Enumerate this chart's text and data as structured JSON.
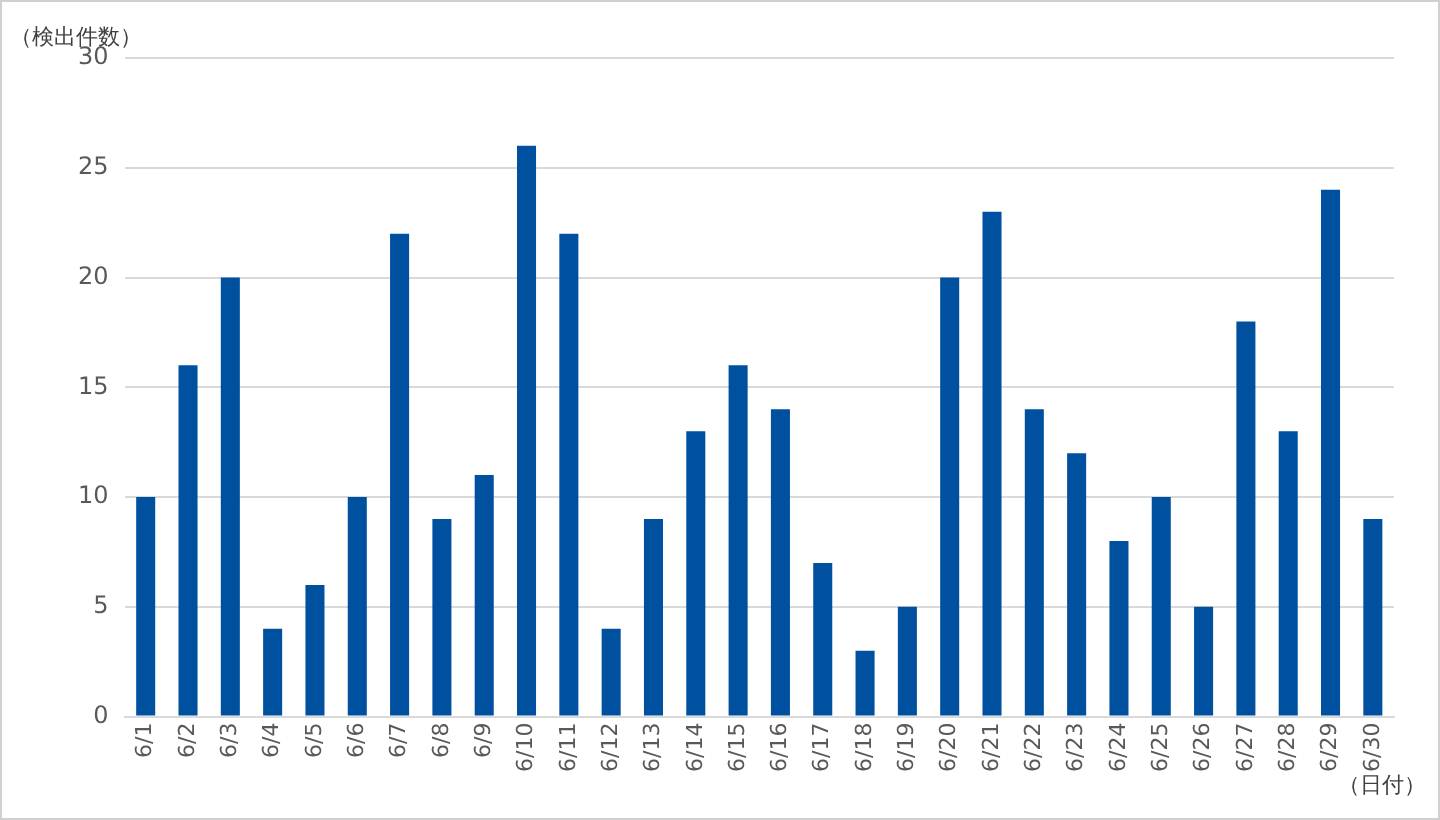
{
  "chart_data": {
    "type": "bar",
    "ylabel": "（検出件数）",
    "xlabel": "（日付）",
    "categories": [
      "6/1",
      "6/2",
      "6/3",
      "6/4",
      "6/5",
      "6/6",
      "6/7",
      "6/8",
      "6/9",
      "6/10",
      "6/11",
      "6/12",
      "6/13",
      "6/14",
      "6/15",
      "6/16",
      "6/17",
      "6/18",
      "6/19",
      "6/20",
      "6/21",
      "6/22",
      "6/23",
      "6/24",
      "6/25",
      "6/26",
      "6/27",
      "6/28",
      "6/29",
      "6/30"
    ],
    "values": [
      10,
      16,
      20,
      4,
      6,
      10,
      22,
      9,
      11,
      26,
      22,
      4,
      9,
      13,
      16,
      14,
      7,
      3,
      5,
      20,
      23,
      14,
      12,
      8,
      10,
      5,
      18,
      13,
      24,
      9
    ],
    "color": "#0050a0",
    "ylim": [
      0,
      30
    ],
    "yticks": [
      0,
      5,
      10,
      15,
      20,
      25,
      30
    ],
    "grid": "y",
    "legend": false
  }
}
